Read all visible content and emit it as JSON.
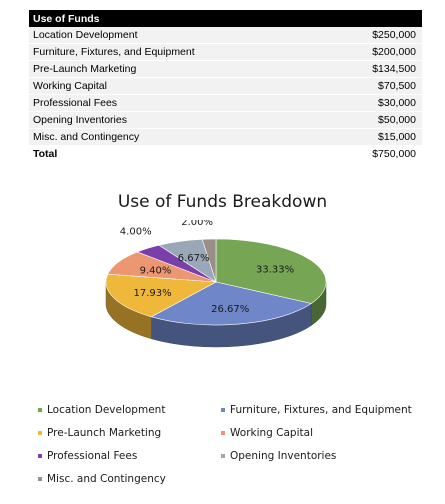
{
  "table": {
    "header": "Use of Funds",
    "rows": [
      {
        "label": "Location Development",
        "amount": "$250,000"
      },
      {
        "label": "Furniture, Fixtures, and Equipment",
        "amount": "$200,000"
      },
      {
        "label": "Pre-Launch Marketing",
        "amount": "$134,500"
      },
      {
        "label": "Working Capital",
        "amount": "$70,500"
      },
      {
        "label": "Professional Fees",
        "amount": "$30,000"
      },
      {
        "label": "Opening Inventories",
        "amount": "$50,000"
      },
      {
        "label": "Misc. and Contingency",
        "amount": "$15,000"
      }
    ],
    "total_label": "Total",
    "total_amount": "$750,000"
  },
  "chart_data": {
    "type": "pie",
    "title": "Use of Funds Breakdown",
    "categories": [
      "Location Development",
      "Furniture, Fixtures, and Equipment",
      "Pre-Launch Marketing",
      "Working Capital",
      "Professional Fees",
      "Opening Inventories",
      "Misc. and Contingency"
    ],
    "values": [
      250000,
      200000,
      134500,
      70500,
      30000,
      50000,
      15000
    ],
    "data_labels": [
      "33.33%",
      "26.67%",
      "17.93%",
      "9.40%",
      "4.00%",
      "6.67%",
      "2.00%"
    ],
    "colors": [
      "#76a654",
      "#6f87c9",
      "#f0b83a",
      "#ec9672",
      "#7a3fa8",
      "#9aa7b8",
      "#9a8f88"
    ],
    "legend_position": "bottom",
    "style": "3d"
  }
}
